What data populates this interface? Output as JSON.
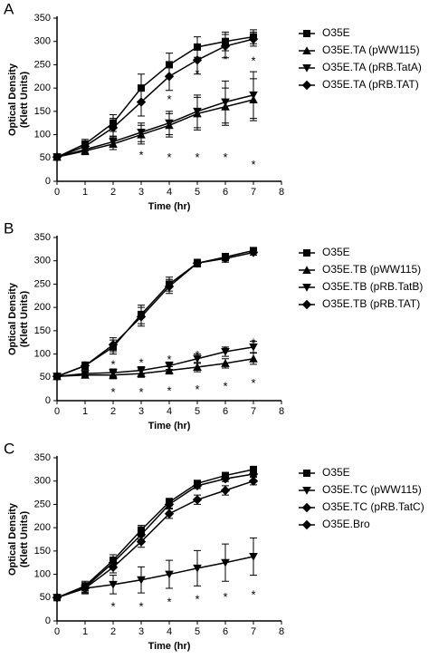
{
  "chart_data": [
    {
      "type": "line",
      "panel_label": "A",
      "xlabel": "Time (hr)",
      "ylabel": [
        "Optical Density",
        "(Klett Units)"
      ],
      "x": [
        0,
        1,
        2,
        3,
        4,
        5,
        6,
        7
      ],
      "xlim": [
        0,
        8
      ],
      "xticks": [
        0,
        1,
        2,
        3,
        4,
        5,
        6,
        7,
        8
      ],
      "ylim": [
        0,
        350
      ],
      "yticks": [
        0,
        50,
        100,
        150,
        200,
        250,
        300,
        350
      ],
      "series": [
        {
          "name": "O35E",
          "color": "#000000",
          "marker": "square",
          "values": [
            52,
            80,
            125,
            200,
            250,
            288,
            300,
            310
          ],
          "errors": [
            5,
            10,
            18,
            30,
            25,
            22,
            20,
            15
          ]
        },
        {
          "name": "O35E.TA (pWW115)",
          "color": "#000000",
          "marker": "triangle-up",
          "values": [
            52,
            65,
            80,
            100,
            120,
            145,
            160,
            175
          ],
          "errors": [
            5,
            8,
            12,
            20,
            25,
            35,
            40,
            45
          ]
        },
        {
          "name": "O35E.TA (pRB.TatA)",
          "color": "#000000",
          "marker": "triangle-down",
          "values": [
            52,
            68,
            85,
            105,
            125,
            150,
            170,
            185
          ],
          "errors": [
            5,
            8,
            12,
            20,
            25,
            35,
            45,
            50
          ]
        },
        {
          "name": "O35E.TA (pRB.TAT)",
          "color": "#000000",
          "marker": "diamond",
          "values": [
            52,
            75,
            115,
            170,
            225,
            260,
            290,
            305
          ],
          "errors": [
            5,
            10,
            20,
            30,
            30,
            30,
            25,
            15
          ]
        }
      ],
      "annotations": [
        {
          "text": "*",
          "x": 3,
          "y": 60
        },
        {
          "text": "*",
          "x": 4,
          "y": 180
        },
        {
          "text": "*",
          "x": 4,
          "y": 55
        },
        {
          "text": "*",
          "x": 5,
          "y": 235
        },
        {
          "text": "*",
          "x": 5,
          "y": 55
        },
        {
          "text": "*",
          "x": 6,
          "y": 265
        },
        {
          "text": "*",
          "x": 6,
          "y": 55
        },
        {
          "text": "*",
          "x": 7,
          "y": 262
        },
        {
          "text": "*",
          "x": 7,
          "y": 40
        }
      ]
    },
    {
      "type": "line",
      "panel_label": "B",
      "xlabel": "Time (hr)",
      "ylabel": [
        "Optical Density",
        "(Klett Units)"
      ],
      "x": [
        0,
        1,
        2,
        3,
        4,
        5,
        6,
        7
      ],
      "xlim": [
        0,
        8
      ],
      "xticks": [
        0,
        1,
        2,
        3,
        4,
        5,
        6,
        7,
        8
      ],
      "ylim": [
        0,
        350
      ],
      "yticks": [
        0,
        50,
        100,
        150,
        200,
        250,
        300,
        350
      ],
      "series": [
        {
          "name": "O35E",
          "color": "#000000",
          "marker": "square",
          "values": [
            52,
            75,
            115,
            185,
            250,
            295,
            308,
            322
          ],
          "errors": [
            5,
            8,
            15,
            20,
            15,
            8,
            8,
            6
          ]
        },
        {
          "name": "O35E.TB (pWW115)",
          "color": "#000000",
          "marker": "triangle-up",
          "values": [
            52,
            55,
            55,
            58,
            65,
            72,
            80,
            90
          ],
          "errors": [
            5,
            5,
            8,
            8,
            8,
            10,
            10,
            12
          ]
        },
        {
          "name": "O35E.TB (pRB.TatB)",
          "color": "#000000",
          "marker": "triangle-down",
          "values": [
            52,
            58,
            60,
            65,
            75,
            90,
            105,
            115
          ],
          "errors": [
            5,
            5,
            8,
            8,
            8,
            10,
            10,
            12
          ]
        },
        {
          "name": "O35E.TB (pRB.TAT)",
          "color": "#000000",
          "marker": "diamond",
          "values": [
            52,
            75,
            120,
            180,
            245,
            295,
            305,
            318
          ],
          "errors": [
            5,
            8,
            15,
            20,
            15,
            8,
            8,
            6
          ]
        }
      ],
      "annotations": [
        {
          "text": "*",
          "x": 2,
          "y": 82
        },
        {
          "text": "*",
          "x": 2,
          "y": 22
        },
        {
          "text": "*",
          "x": 3,
          "y": 85
        },
        {
          "text": "*",
          "x": 3,
          "y": 22
        },
        {
          "text": "*",
          "x": 4,
          "y": 92
        },
        {
          "text": "*",
          "x": 4,
          "y": 25
        },
        {
          "text": "*",
          "x": 5,
          "y": 102
        },
        {
          "text": "*",
          "x": 5,
          "y": 28
        },
        {
          "text": "*",
          "x": 6,
          "y": 112
        },
        {
          "text": "*",
          "x": 6,
          "y": 35
        },
        {
          "text": "*",
          "x": 7,
          "y": 128
        },
        {
          "text": "*",
          "x": 7,
          "y": 42
        }
      ]
    },
    {
      "type": "line",
      "panel_label": "C",
      "xlabel": "Time (hr)",
      "ylabel": [
        "Optical Density",
        "(Klett Units)"
      ],
      "x": [
        0,
        1,
        2,
        3,
        4,
        5,
        6,
        7
      ],
      "xlim": [
        0,
        8
      ],
      "xticks": [
        0,
        1,
        2,
        3,
        4,
        5,
        6,
        7,
        8
      ],
      "ylim": [
        0,
        350
      ],
      "yticks": [
        0,
        50,
        100,
        150,
        200,
        250,
        300,
        350
      ],
      "series": [
        {
          "name": "O35E",
          "color": "#000000",
          "marker": "square",
          "values": [
            50,
            75,
            130,
            195,
            255,
            295,
            312,
            325
          ],
          "errors": [
            5,
            10,
            12,
            10,
            8,
            6,
            6,
            5
          ]
        },
        {
          "name": "O35E.TC (pWW115)",
          "color": "#000000",
          "marker": "triangle-down",
          "values": [
            50,
            70,
            78,
            88,
            100,
            113,
            125,
            138
          ],
          "errors": [
            5,
            12,
            20,
            28,
            30,
            38,
            40,
            40
          ]
        },
        {
          "name": "O35E.TC (pRB.TatC)",
          "color": "#000000",
          "marker": "diamond",
          "values": [
            50,
            70,
            115,
            170,
            230,
            260,
            280,
            300
          ],
          "errors": [
            5,
            10,
            12,
            12,
            10,
            10,
            10,
            8
          ]
        },
        {
          "name": "O35E.Bro",
          "color": "#000000",
          "marker": "diamond",
          "values": [
            50,
            72,
            125,
            185,
            250,
            290,
            305,
            315
          ],
          "errors": [
            5,
            10,
            12,
            10,
            8,
            6,
            6,
            5
          ]
        }
      ],
      "annotations": [
        {
          "text": "*",
          "x": 2,
          "y": 35
        },
        {
          "text": "*",
          "x": 3,
          "y": 35
        },
        {
          "text": "*",
          "x": 4,
          "y": 45
        },
        {
          "text": "*",
          "x": 5,
          "y": 50
        },
        {
          "text": "*",
          "x": 6,
          "y": 55
        },
        {
          "text": "*",
          "x": 7,
          "y": 60
        }
      ]
    }
  ]
}
